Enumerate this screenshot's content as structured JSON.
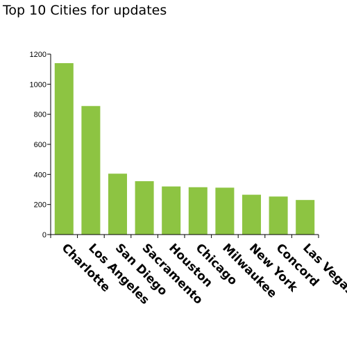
{
  "chart_data": {
    "type": "bar",
    "title": "Top 10 Cities for updates",
    "xlabel": "",
    "ylabel": "",
    "categories": [
      "Charlotte",
      "Los Angeles",
      "San Diego",
      "Sacramento",
      "Houston",
      "Chicago",
      "Milwaukee",
      "New York",
      "Concord",
      "Las Vegas"
    ],
    "values": [
      1140,
      855,
      405,
      355,
      320,
      315,
      312,
      265,
      253,
      230
    ],
    "ylim": [
      0,
      1200
    ],
    "yticks": [
      0,
      200,
      400,
      600,
      800,
      1000,
      1200
    ],
    "grid": false,
    "legend": "none",
    "bar_color": "#8dc442"
  }
}
